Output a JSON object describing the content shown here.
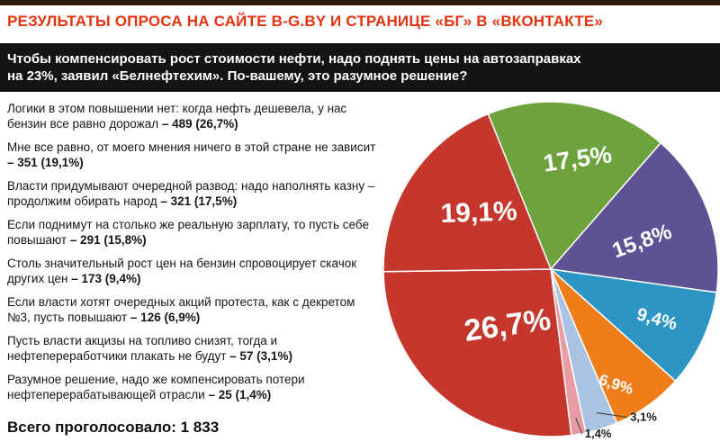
{
  "header": {
    "title": "РЕЗУЛЬТАТЫ ОПРОСА НА САЙТЕ B-G.BY И СТРАНИЦЕ «БГ» В «ВКОНТАКТЕ»"
  },
  "question": {
    "text": "Чтобы компенсировать рост стоимости нефти, надо поднять цены на автозаправках на 23%, заявил «Белнефтехим». По-вашему, это разумное решение?"
  },
  "answers": [
    {
      "text": "Логики в этом повышении нет: когда нефть дешевела, у нас бензин все равно дорожал ",
      "value": "– 489 (26,7%)"
    },
    {
      "text": "Мне все равно, от моего мнения ничего в этой стране не зависит ",
      "value": "– 351 (19,1%)"
    },
    {
      "text": "Власти придумывают очередной развод: надо наполнять казну – продолжим обирать народ ",
      "value": "– 321 (17,5%)"
    },
    {
      "text": "Если поднимут на столько же реальную зарплату, то пусть себе повышают ",
      "value": "– 291 (15,8%)"
    },
    {
      "text": "Столь значительный рост цен на бензин спровоцирует скачок других цен ",
      "value": "– 173 (9,4%)"
    },
    {
      "text": "Если власти хотят очередных акций протеста, как с декретом №3, пусть повышают ",
      "value": "– 126 (6,9%)"
    },
    {
      "text": "Пусть власти акцизы на топливо снизят, тогда и нефтепереработчики плакать не будут ",
      "value": "– 57 (3,1%)"
    },
    {
      "text": "Разумное решение, надо же компенсировать потери нефтеперерабатывающей отрасли ",
      "value": "– 25 (1,4%)"
    }
  ],
  "totals": {
    "text": "Всего проголосовало: 1 833"
  },
  "colors": {
    "title_red": "#e5330f",
    "banner_bg": "#141414",
    "top_bar": "#2f1c10"
  },
  "chart_data": {
    "type": "pie",
    "title": "Чтобы компенсировать рост стоимости нефти, надо поднять цены на автозаправках на 23%, заявил «Белнефтехим». По-вашему, это разумное решение?",
    "total_votes": 1833,
    "total_votes_label": "Всего проголосовало: 1 833",
    "start_angle_deg": -22,
    "legend_position": "left-text-list",
    "slices": [
      {
        "answer": "Власти придумывают очередной развод: надо наполнять казну – продолжим обирать народ",
        "votes": 321,
        "pct": 17.5,
        "pct_label": "17,5%",
        "color": "#6da23c"
      },
      {
        "answer": "Если поднимут на столько же реальную зарплату, то пусть себе повышают",
        "votes": 291,
        "pct": 15.8,
        "pct_label": "15,8%",
        "color": "#5d5394"
      },
      {
        "answer": "Столь значительный рост цен на бензин спровоцирует скачок других цен",
        "votes": 173,
        "pct": 9.4,
        "pct_label": "9,4%",
        "color": "#2c95c3"
      },
      {
        "answer": "Если власти хотят очередных акций протеста, как с декретом №3, пусть повышают",
        "votes": 126,
        "pct": 6.9,
        "pct_label": "6,9%",
        "color": "#ee7d1a"
      },
      {
        "answer": "Пусть власти акцизы на топливо снизят, тогда и нефтепереработчики плакать не будут",
        "votes": 57,
        "pct": 3.1,
        "pct_label": "3,1%",
        "color": "#a9c4e3"
      },
      {
        "answer": "Разумное решение, надо же компенсировать потери нефтеперерабатывающей отрасли",
        "votes": 25,
        "pct": 1.4,
        "pct_label": "1,4%",
        "color": "#e89ba2"
      },
      {
        "answer": "Логики в этом повышении нет: когда нефть дешевела, у нас бензин все равно дорожал",
        "votes": 489,
        "pct": 26.7,
        "pct_label": "26,7%",
        "color": "#c5372d"
      },
      {
        "answer": "Мне все равно, от моего мнения ничего в этой стране не зависит",
        "votes": 351,
        "pct": 19.1,
        "pct_label": "19,1%",
        "color": "#c5372d"
      }
    ]
  }
}
